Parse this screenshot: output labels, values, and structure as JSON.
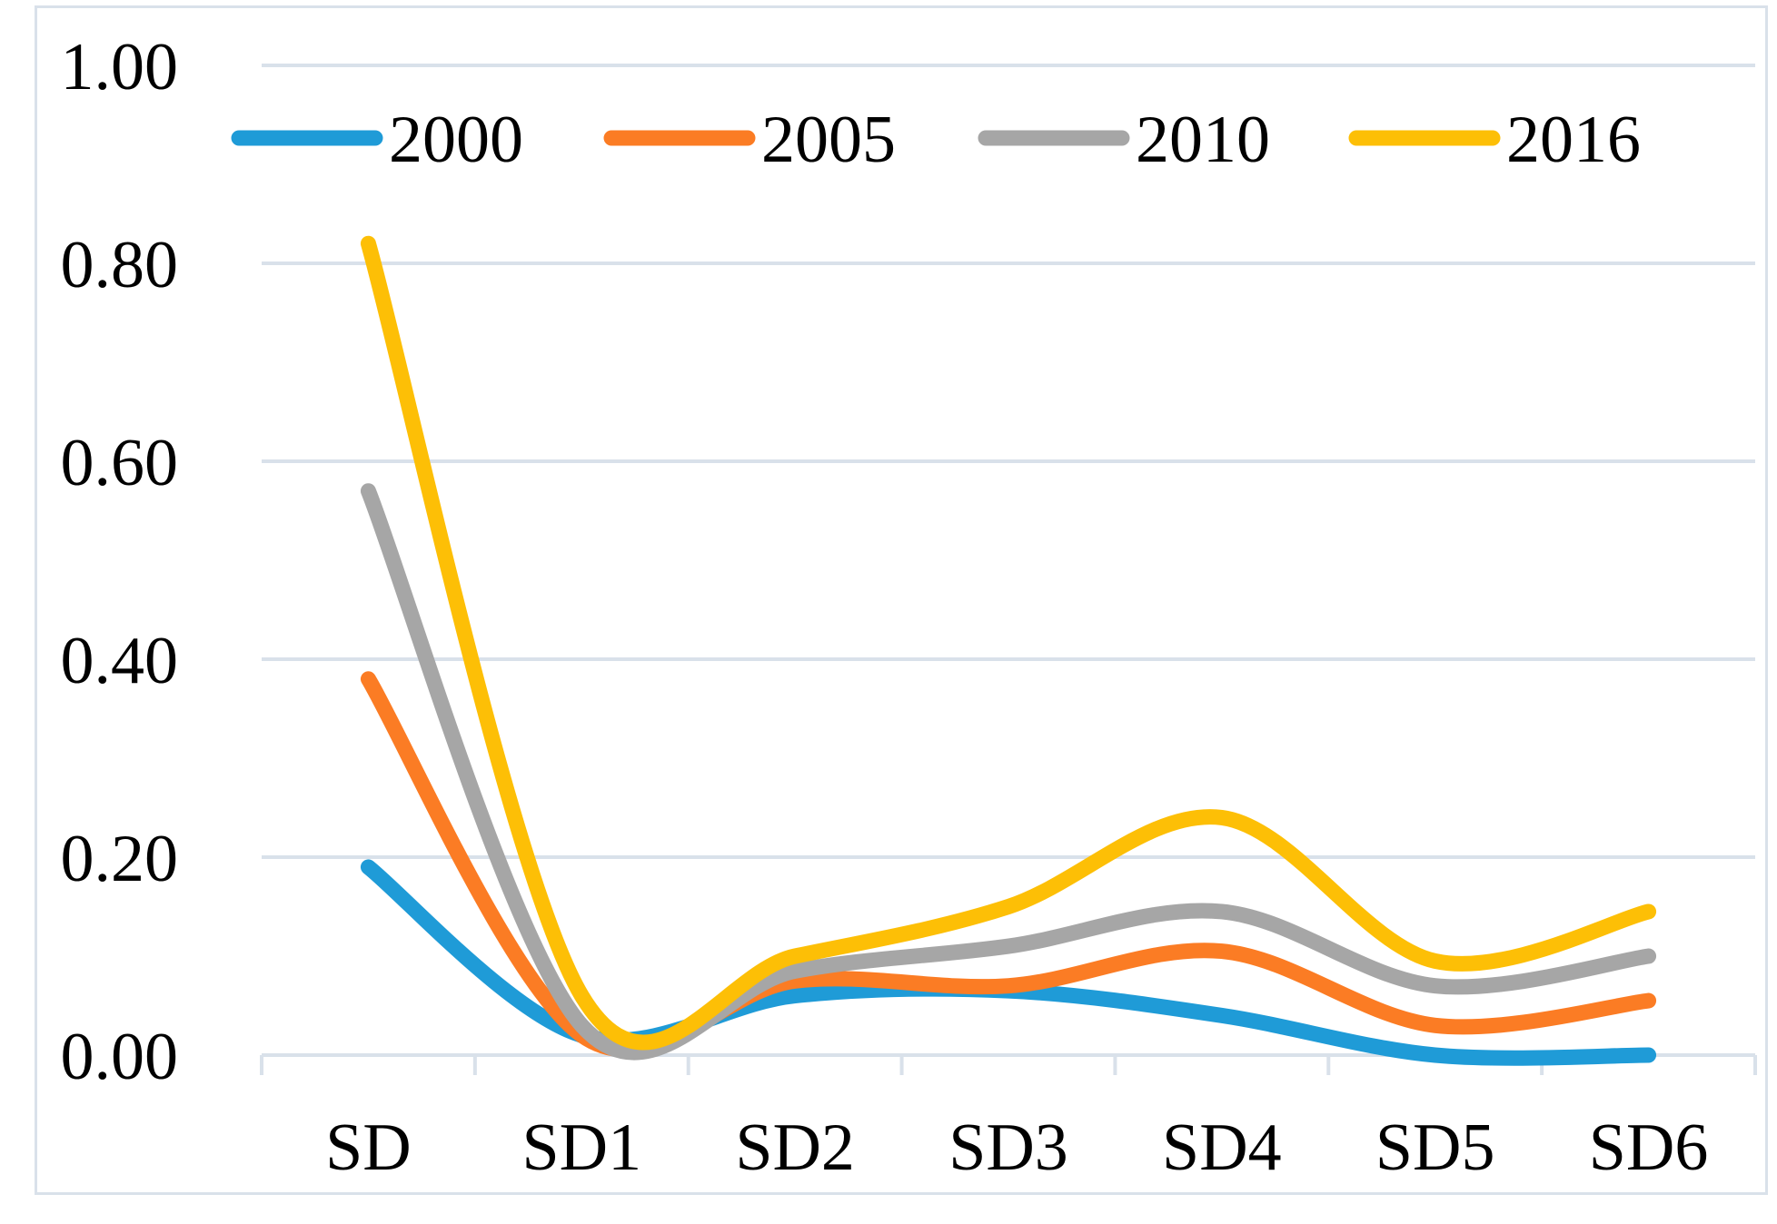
{
  "chart_data": {
    "type": "line",
    "title": "",
    "xlabel": "",
    "ylabel": "",
    "categories": [
      "SD",
      "SD1",
      "SD2",
      "SD3",
      "SD4",
      "SD5",
      "SD6"
    ],
    "ylim": [
      0,
      1.0
    ],
    "yticks": [
      "0.00",
      "0.20",
      "0.40",
      "0.60",
      "0.80",
      "1.00"
    ],
    "grid": true,
    "smooth": true,
    "legend_position": "top",
    "series": [
      {
        "name": "2000",
        "color": "#1f9bd7",
        "values": [
          0.19,
          0.02,
          0.06,
          0.065,
          0.04,
          0.0,
          0.0
        ]
      },
      {
        "name": "2005",
        "color": "#fb7c24",
        "values": [
          0.38,
          0.02,
          0.075,
          0.07,
          0.105,
          0.03,
          0.055
        ]
      },
      {
        "name": "2010",
        "color": "#a6a6a6",
        "values": [
          0.57,
          0.03,
          0.085,
          0.11,
          0.145,
          0.07,
          0.1
        ]
      },
      {
        "name": "2016",
        "color": "#fdbf06",
        "values": [
          0.82,
          0.06,
          0.1,
          0.15,
          0.24,
          0.095,
          0.145
        ]
      }
    ]
  }
}
